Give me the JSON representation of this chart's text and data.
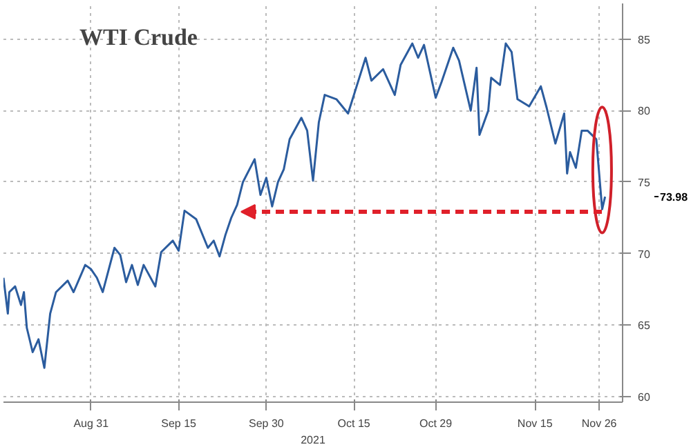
{
  "chart_data": {
    "type": "line",
    "title": "WTI Crude",
    "xlabel": "2021",
    "x": [
      "2021-08-16",
      "2021-08-16T18:00",
      "2021-08-17",
      "2021-08-18",
      "2021-08-19",
      "2021-08-19T12:00",
      "2021-08-20",
      "2021-08-21",
      "2021-08-22",
      "2021-08-23",
      "2021-08-24",
      "2021-08-25",
      "2021-08-27",
      "2021-08-28",
      "2021-08-30",
      "2021-08-31",
      "2021-09-01",
      "2021-09-02",
      "2021-09-04",
      "2021-09-05",
      "2021-09-06",
      "2021-09-07",
      "2021-09-08",
      "2021-09-09",
      "2021-09-11",
      "2021-09-12",
      "2021-09-14",
      "2021-09-15",
      "2021-09-16",
      "2021-09-18",
      "2021-09-20",
      "2021-09-21",
      "2021-09-22",
      "2021-09-23",
      "2021-09-24",
      "2021-09-25",
      "2021-09-26",
      "2021-09-28",
      "2021-09-29",
      "2021-09-30",
      "2021-10-01",
      "2021-10-02",
      "2021-10-03",
      "2021-10-04",
      "2021-10-06",
      "2021-10-07",
      "2021-10-08",
      "2021-10-09",
      "2021-10-10",
      "2021-10-12",
      "2021-10-14",
      "2021-10-15",
      "2021-10-17",
      "2021-10-18",
      "2021-10-20",
      "2021-10-22",
      "2021-10-23",
      "2021-10-25",
      "2021-10-26",
      "2021-10-27",
      "2021-10-29",
      "2021-10-30",
      "2021-11-01",
      "2021-11-02",
      "2021-11-04",
      "2021-11-05",
      "2021-11-05T12:00",
      "2021-11-07",
      "2021-11-07T12:00",
      "2021-11-09",
      "2021-11-10",
      "2021-11-11",
      "2021-11-12",
      "2021-11-14",
      "2021-11-16",
      "2021-11-17",
      "2021-11-18T12:00",
      "2021-11-20",
      "2021-11-20T12:00",
      "2021-11-21",
      "2021-11-22",
      "2021-11-23",
      "2021-11-24",
      "2021-11-25T12:00",
      "2021-11-26T12:00",
      "2021-11-27"
    ],
    "series": [
      {
        "color": "#2b5c9e",
        "values": [
          68.3,
          65.8,
          67.3,
          67.7,
          66.4,
          67.3,
          64.8,
          63.1,
          64.0,
          62.0,
          65.8,
          67.3,
          68.1,
          67.3,
          69.2,
          68.9,
          68.3,
          67.3,
          70.4,
          69.9,
          68.0,
          69.2,
          67.8,
          69.2,
          67.7,
          70.1,
          70.9,
          70.2,
          73.0,
          72.4,
          70.4,
          70.9,
          69.8,
          71.3,
          72.5,
          73.4,
          75.0,
          76.6,
          74.1,
          75.3,
          73.3,
          75.0,
          75.9,
          78.0,
          79.5,
          78.6,
          75.1,
          79.2,
          81.1,
          80.8,
          79.8,
          81.1,
          83.7,
          82.1,
          82.9,
          81.1,
          83.2,
          84.7,
          83.7,
          84.6,
          80.9,
          82.0,
          84.4,
          83.5,
          80.0,
          83.0,
          78.3,
          80.0,
          82.3,
          81.8,
          84.7,
          84.1,
          80.8,
          80.3,
          81.7,
          80.2,
          77.7,
          79.8,
          75.6,
          77.1,
          76.0,
          78.6,
          78.6,
          78.0,
          73.1,
          73.98
        ]
      }
    ],
    "annotations": [
      "73.98"
    ],
    "xlim": [
      "2021-08-16",
      "2021-11-30"
    ],
    "xticks": [
      {
        "value": "2021-08-31",
        "label": "Aug 31"
      },
      {
        "value": "2021-09-15",
        "label": "Sep 15"
      },
      {
        "value": "2021-09-30",
        "label": "Sep 30"
      },
      {
        "value": "2021-10-15",
        "label": "Oct 15"
      },
      {
        "value": "2021-10-29",
        "label": "Oct 29"
      },
      {
        "value": "2021-11-15",
        "label": "Nov 15"
      },
      {
        "value": "2021-11-26",
        "label": "Nov 26"
      }
    ],
    "ylim": [
      59.6,
      87.5
    ],
    "yticks": [
      60,
      65,
      70,
      75,
      80,
      85
    ],
    "grid": true,
    "marker": "none",
    "line_style": "solid"
  }
}
